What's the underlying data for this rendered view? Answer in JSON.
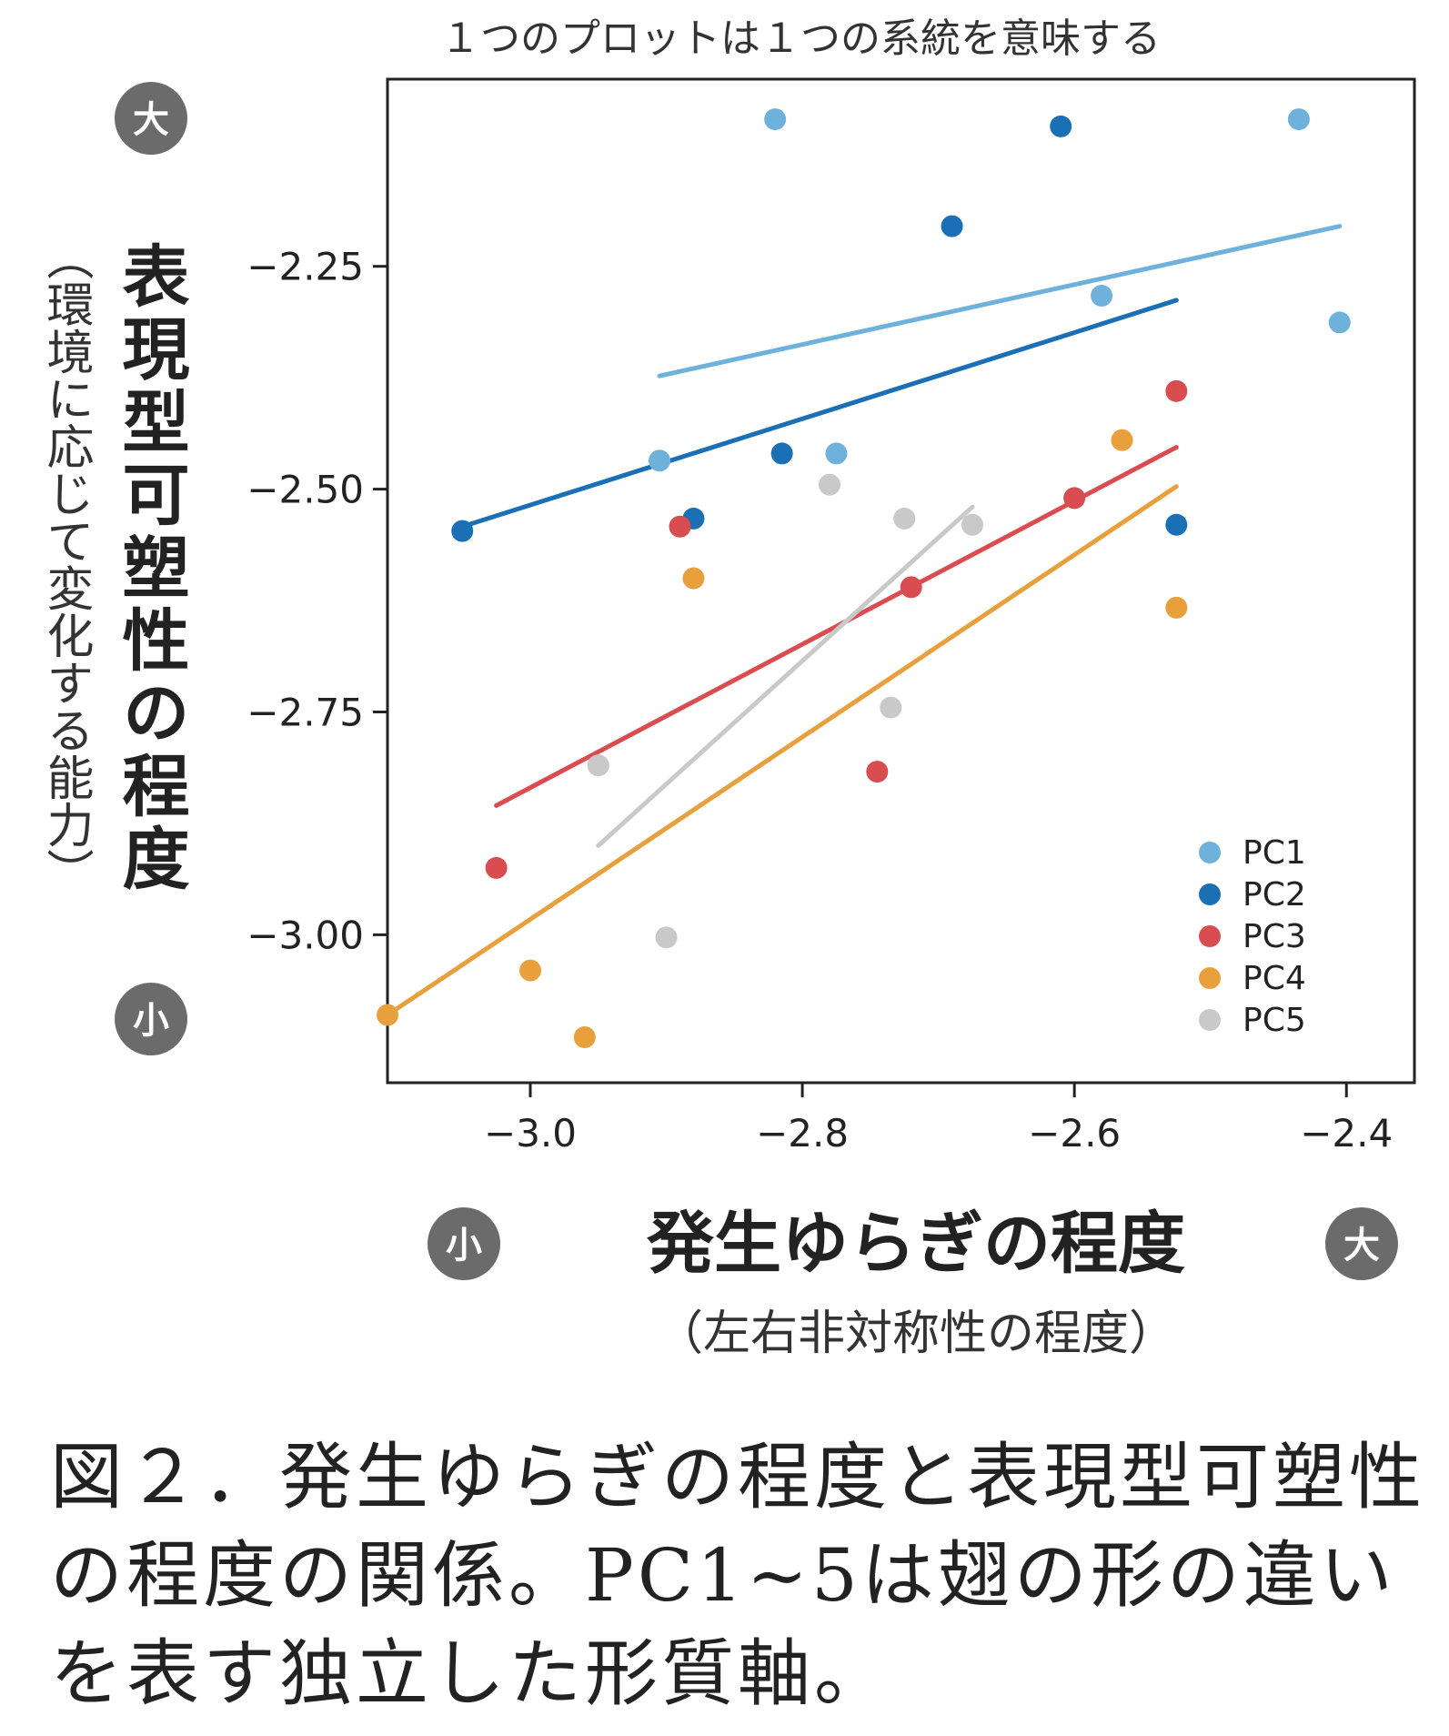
{
  "chart_data": {
    "type": "scatter",
    "title": "１つのプロットは１つの系統を意味する",
    "xlabel": "発生ゆらぎの程度",
    "xlabel_sub": "（左右非対称性の程度）",
    "x_low_badge": "小",
    "x_high_badge": "大",
    "ylabel": "表現型可塑性の程度",
    "ylabel_sub": "（環境に応じて変化する能力）",
    "y_low_badge": "小",
    "y_high_badge": "大",
    "xlim": [
      -3.105,
      -2.35
    ],
    "ylim": [
      -3.166,
      -2.04
    ],
    "xticks": [
      -3.0,
      -2.8,
      -2.6,
      -2.4
    ],
    "xtick_labels": [
      "−3.0",
      "−2.8",
      "−2.6",
      "−2.4"
    ],
    "yticks": [
      -2.25,
      -2.5,
      -2.75,
      -3.0
    ],
    "ytick_labels": [
      "−2.25",
      "−2.50",
      "−2.75",
      "−3.00"
    ],
    "grid": false,
    "legend_position": "bottom-right",
    "series": [
      {
        "name": "PC1",
        "color": "#6eb2dc",
        "points": [
          [
            -2.82,
            -2.085
          ],
          [
            -2.435,
            -2.085
          ],
          [
            -2.58,
            -2.283
          ],
          [
            -2.405,
            -2.313
          ],
          [
            -2.905,
            -2.468
          ],
          [
            -2.775,
            -2.46
          ]
        ],
        "trend": [
          [
            -2.905,
            -2.373
          ],
          [
            -2.405,
            -2.205
          ]
        ]
      },
      {
        "name": "PC2",
        "color": "#1b6fb5",
        "points": [
          [
            -2.61,
            -2.093
          ],
          [
            -2.69,
            -2.205
          ],
          [
            -2.815,
            -2.46
          ],
          [
            -3.05,
            -2.547
          ],
          [
            -2.88,
            -2.533
          ],
          [
            -2.525,
            -2.54
          ]
        ],
        "trend": [
          [
            -3.05,
            -2.542
          ],
          [
            -2.525,
            -2.288
          ]
        ]
      },
      {
        "name": "PC3",
        "color": "#d94c50",
        "points": [
          [
            -2.525,
            -2.39
          ],
          [
            -2.6,
            -2.51
          ],
          [
            -2.72,
            -2.61
          ],
          [
            -2.89,
            -2.542
          ],
          [
            -2.745,
            -2.817
          ],
          [
            -3.025,
            -2.925
          ]
        ],
        "trend": [
          [
            -3.025,
            -2.855
          ],
          [
            -2.525,
            -2.453
          ]
        ]
      },
      {
        "name": "PC4",
        "color": "#e8a03d",
        "points": [
          [
            -2.565,
            -2.445
          ],
          [
            -2.88,
            -2.6
          ],
          [
            -2.525,
            -2.633
          ],
          [
            -3.0,
            -3.04
          ],
          [
            -2.96,
            -3.115
          ],
          [
            -3.105,
            -3.09
          ]
        ],
        "trend": [
          [
            -3.105,
            -3.09
          ],
          [
            -2.525,
            -2.497
          ]
        ]
      },
      {
        "name": "PC5",
        "color": "#c9c9c9",
        "points": [
          [
            -2.78,
            -2.495
          ],
          [
            -2.725,
            -2.533
          ],
          [
            -2.675,
            -2.54
          ],
          [
            -2.735,
            -2.745
          ],
          [
            -2.95,
            -2.81
          ],
          [
            -2.9,
            -3.003
          ]
        ],
        "trend": [
          [
            -2.95,
            -2.9
          ],
          [
            -2.675,
            -2.52
          ]
        ]
      }
    ]
  },
  "caption": {
    "lines": [
      "図２．発生ゆらぎの程度と表現型可塑性",
      "の程度の関係。PC1~5は翅の形の違い",
      "を表す独立した形質軸。"
    ]
  }
}
